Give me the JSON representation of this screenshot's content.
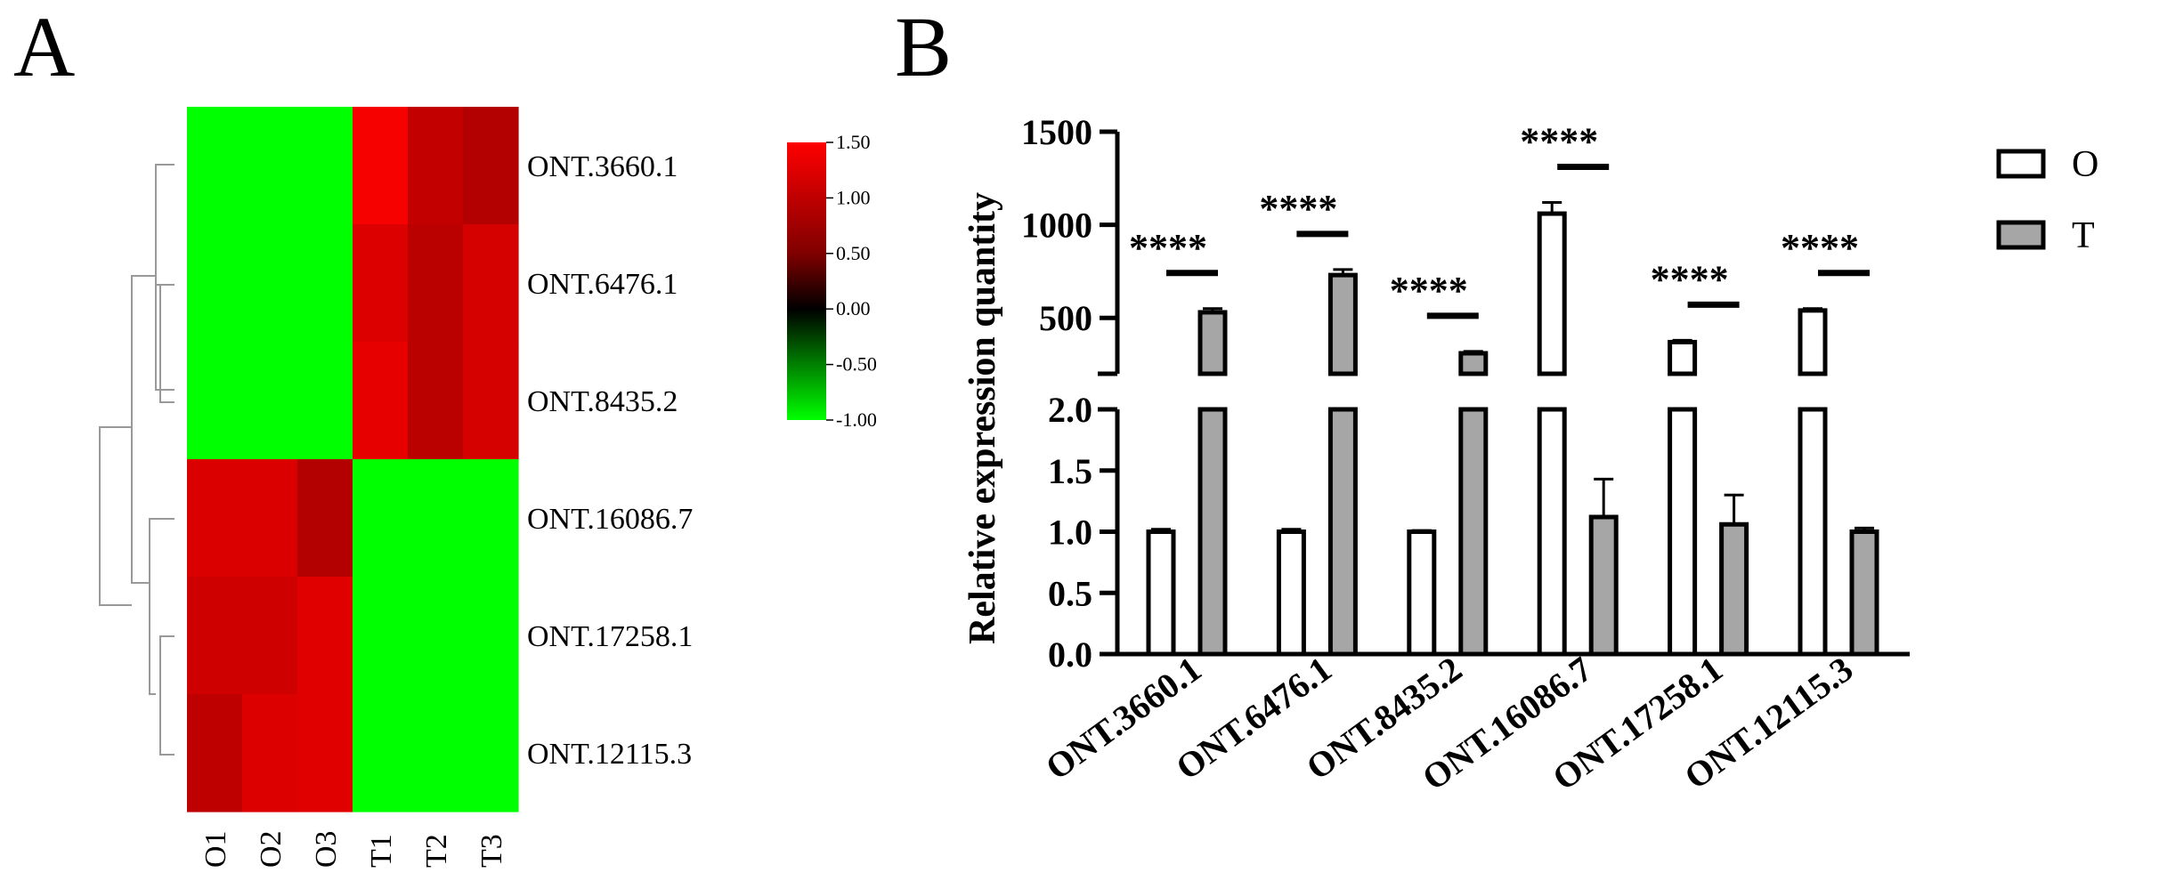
{
  "panels": {
    "a": "A",
    "b": "B"
  },
  "chart_data": [
    {
      "type": "heatmap",
      "panel": "A",
      "columns": [
        "O1",
        "O2",
        "O3",
        "T1",
        "T2",
        "T3"
      ],
      "rows": [
        "ONT.3660.1",
        "ONT.6476.1",
        "ONT.8435.2",
        "ONT.16086.7",
        "ONT.17258.1",
        "ONT.12115.3"
      ],
      "values": [
        [
          -1.0,
          -1.0,
          -1.0,
          1.45,
          1.15,
          1.05
        ],
        [
          -1.0,
          -1.0,
          -1.0,
          1.3,
          1.1,
          1.25
        ],
        [
          -1.0,
          -1.0,
          -1.0,
          1.35,
          1.1,
          1.25
        ],
        [
          1.28,
          1.28,
          1.05,
          -1.0,
          -1.0,
          -1.0
        ],
        [
          1.22,
          1.22,
          1.32,
          -1.0,
          -1.0,
          -1.0
        ],
        [
          1.12,
          1.3,
          1.32,
          -1.0,
          -1.0,
          -1.0
        ]
      ],
      "color_scale": {
        "min": -1.0,
        "mid": 0.0,
        "max": 1.5,
        "low_color": "#00ff00",
        "mid_color": "#000000",
        "high_color": "#ff0000"
      },
      "colorbar_ticks": [
        "1.50",
        "1.00",
        "0.50",
        "0.00",
        "-0.50",
        "-1.00"
      ],
      "dendrogram": "rows"
    },
    {
      "type": "bar",
      "panel": "B",
      "categories": [
        "ONT.3660.1",
        "ONT.6476.1",
        "ONT.8435.2",
        "ONT.16086.7",
        "ONT.17258.1",
        "ONT.12115.3"
      ],
      "series": [
        {
          "name": "O",
          "values": [
            1.0,
            1.0,
            1.0,
            1060,
            370,
            540
          ],
          "errors": [
            0.02,
            0.02,
            0.01,
            60,
            10,
            10
          ],
          "color": "#ffffff"
        },
        {
          "name": "T",
          "values": [
            530,
            730,
            310,
            1.12,
            1.06,
            1.0
          ],
          "errors": [
            20,
            30,
            10,
            0.31,
            0.24,
            0.03
          ],
          "color": "#a6a6a6"
        }
      ],
      "ylabel": "Relative expression quantity",
      "xlabel": "",
      "broken_axis": true,
      "lower_ylim": [
        0,
        2.0
      ],
      "lower_ticks": [
        "0.0",
        "0.5",
        "1.0",
        "1.5",
        "2.0"
      ],
      "upper_ylim": [
        200,
        1500
      ],
      "upper_ticks": [
        "500",
        "1000",
        "1500"
      ],
      "significance": [
        "****",
        "****",
        "****",
        "****",
        "****",
        "****"
      ],
      "legend_position": "top-right",
      "legend": [
        "O",
        "T"
      ]
    }
  ]
}
